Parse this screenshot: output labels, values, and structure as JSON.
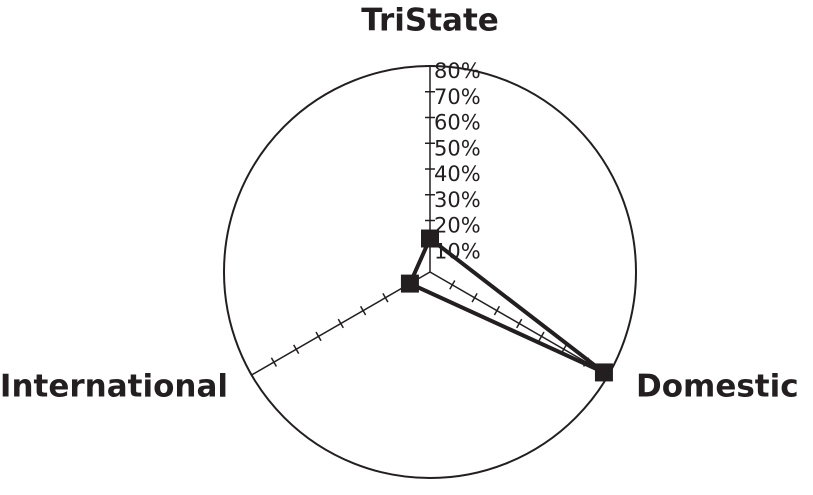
{
  "chart_data": {
    "type": "radar",
    "categories": [
      "TriState",
      "Domestic",
      "International"
    ],
    "series": [
      {
        "color": "#231f20",
        "values": [
          13,
          78,
          9
        ]
      }
    ],
    "ylim": [
      0,
      80
    ],
    "yticks": [
      {
        "value": 10,
        "label": "10%"
      },
      {
        "value": 20,
        "label": "20%"
      },
      {
        "value": 30,
        "label": "30%"
      },
      {
        "value": 40,
        "label": "40%"
      },
      {
        "value": 50,
        "label": "50%"
      },
      {
        "value": 60,
        "label": "60%"
      },
      {
        "value": 70,
        "label": "70%"
      },
      {
        "value": 80,
        "label": "80%"
      }
    ]
  }
}
